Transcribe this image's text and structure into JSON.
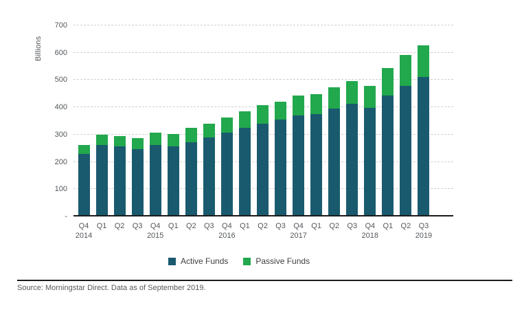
{
  "chart_data": {
    "type": "bar",
    "stacked": true,
    "ylabel": "Billions",
    "ylim": [
      0,
      700
    ],
    "grid": "horizontal-dashed",
    "legend_position": "bottom-center",
    "yticks": [
      {
        "label": "700",
        "value": 700
      },
      {
        "label": "600",
        "value": 600
      },
      {
        "label": "500",
        "value": 500
      },
      {
        "label": "400",
        "value": 400
      },
      {
        "label": "300",
        "value": 300
      },
      {
        "label": "200",
        "value": 200
      },
      {
        "label": "100",
        "value": 100
      },
      {
        "label": "-",
        "value": 0
      }
    ],
    "categories": [
      "Q4",
      "Q1",
      "Q2",
      "Q3",
      "Q4",
      "Q1",
      "Q2",
      "Q3",
      "Q4",
      "Q1",
      "Q2",
      "Q3",
      "Q4",
      "Q1",
      "Q2",
      "Q3",
      "Q4",
      "Q1",
      "Q2",
      "Q3"
    ],
    "year_labels": [
      {
        "index": 0,
        "label": "2014"
      },
      {
        "index": 4,
        "label": "2015"
      },
      {
        "index": 8,
        "label": "2016"
      },
      {
        "index": 12,
        "label": "2017"
      },
      {
        "index": 16,
        "label": "2018"
      },
      {
        "index": 19,
        "label": "2019"
      }
    ],
    "series": [
      {
        "name": "Active Funds",
        "color": "#1A5A6E",
        "values": [
          228,
          261,
          256,
          246,
          261,
          258,
          273,
          289,
          306,
          324,
          341,
          354,
          370,
          376,
          395,
          413,
          399,
          444,
          479,
          510
        ]
      },
      {
        "name": "Passive Funds",
        "color": "#22A84D",
        "values": [
          33,
          39,
          38,
          40,
          46,
          45,
          51,
          51,
          56,
          62,
          66,
          67,
          74,
          73,
          78,
          84,
          80,
          99,
          112,
          118
        ]
      }
    ]
  },
  "footer": {
    "source_text": "Source: Morningstar Direct. Data as of September 2019."
  }
}
